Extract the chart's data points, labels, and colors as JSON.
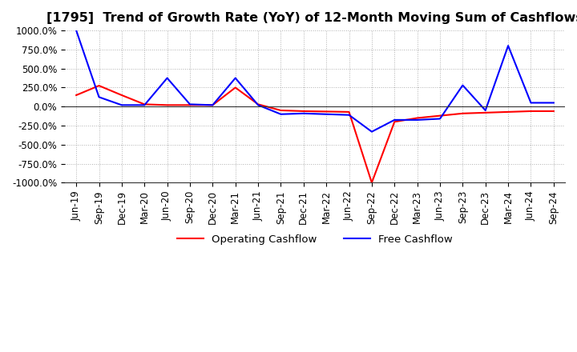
{
  "title": "[1795]  Trend of Growth Rate (YoY) of 12-Month Moving Sum of Cashflows",
  "ylim": [
    -1000,
    1000
  ],
  "yticks": [
    -1000,
    -750,
    -500,
    -250,
    0,
    250,
    500,
    750,
    1000
  ],
  "x_labels": [
    "Jun-19",
    "Sep-19",
    "Dec-19",
    "Mar-20",
    "Jun-20",
    "Sep-20",
    "Dec-20",
    "Mar-21",
    "Jun-21",
    "Sep-21",
    "Dec-21",
    "Mar-22",
    "Jun-22",
    "Sep-22",
    "Dec-22",
    "Mar-23",
    "Jun-23",
    "Sep-23",
    "Dec-23",
    "Mar-24",
    "Jun-24",
    "Sep-24"
  ],
  "operating_cashflow": [
    150,
    275,
    150,
    30,
    20,
    20,
    20,
    250,
    30,
    -50,
    -60,
    -65,
    -70,
    -1000,
    -200,
    -150,
    -120,
    -90,
    -80,
    -70,
    -60,
    -60
  ],
  "free_cashflow": [
    1000,
    125,
    20,
    20,
    375,
    30,
    20,
    375,
    20,
    -100,
    -90,
    -100,
    -110,
    -330,
    -175,
    -175,
    -160,
    280,
    -50,
    800,
    50,
    50
  ],
  "operating_color": "#ff0000",
  "free_color": "#0000ff",
  "background_color": "#ffffff",
  "grid_color": "#b0b0b0",
  "title_fontsize": 11.5,
  "tick_fontsize": 8.5,
  "legend_fontsize": 9.5
}
